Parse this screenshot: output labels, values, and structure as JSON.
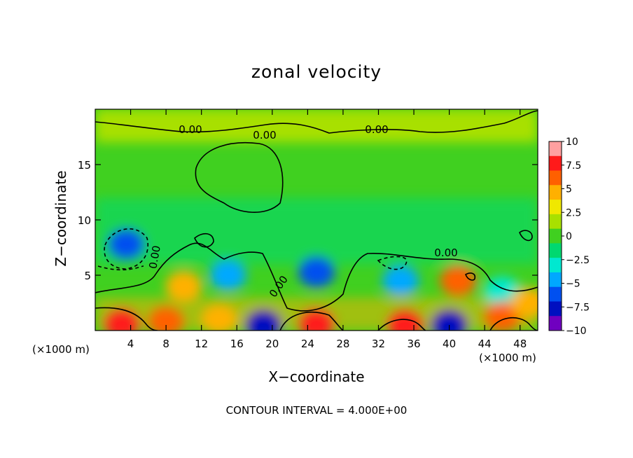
{
  "chart_data": {
    "type": "heatmap",
    "title": "zonal velocity",
    "xlabel": "X−coordinate",
    "ylabel": "Z−coordinate",
    "x_unit": "(×1000 m)",
    "x_unit_right": "(×1000 m)",
    "xlim": [
      0,
      50
    ],
    "ylim": [
      0,
      20
    ],
    "x_ticks": [
      4,
      8,
      12,
      16,
      20,
      24,
      28,
      32,
      36,
      40,
      44,
      48
    ],
    "y_ticks": [
      5,
      10,
      15
    ],
    "colorbar": {
      "range": [
        -10,
        10
      ],
      "ticks": [
        "10",
        "7.5",
        "5",
        "2.5",
        "0",
        "−2.5",
        "−5",
        "−7.5",
        "−10"
      ],
      "colors": [
        "#ffa0a0",
        "#ff1a1a",
        "#ff6000",
        "#ffb000",
        "#f0e800",
        "#a8e000",
        "#40d020",
        "#00d870",
        "#00e8d0",
        "#00a8ff",
        "#0050f0",
        "#0010c0",
        "#7000c0"
      ]
    },
    "contour_labels": [
      "0.00",
      "0.00",
      "0.00",
      "0.00",
      "0.00",
      "0.00"
    ],
    "contour_interval_text": "CONTOUR INTERVAL = 4.000E+00",
    "features": [
      {
        "x": 3.5,
        "z": 7.8,
        "u": -7
      },
      {
        "x": 10,
        "z": 4,
        "u": 5
      },
      {
        "x": 15,
        "z": 5,
        "u": -5
      },
      {
        "x": 25,
        "z": 5.3,
        "u": -6
      },
      {
        "x": 34.5,
        "z": 4.5,
        "u": -5
      },
      {
        "x": 41,
        "z": 4.5,
        "u": 7
      },
      {
        "x": 46,
        "z": 3.5,
        "u": -4
      },
      {
        "x": 3,
        "z": 0.6,
        "u": 9
      },
      {
        "x": 19,
        "z": 0.5,
        "u": -8
      },
      {
        "x": 25,
        "z": 0.6,
        "u": 9
      },
      {
        "x": 35,
        "z": 0.5,
        "u": 9
      },
      {
        "x": 40,
        "z": 0.5,
        "u": -8
      },
      {
        "x": 46,
        "z": 1.2,
        "u": 6
      },
      {
        "x": 49,
        "z": 2.5,
        "u": 5
      },
      {
        "x": 8,
        "z": 0.8,
        "u": 6
      },
      {
        "x": 14,
        "z": 1,
        "u": 5
      }
    ]
  }
}
